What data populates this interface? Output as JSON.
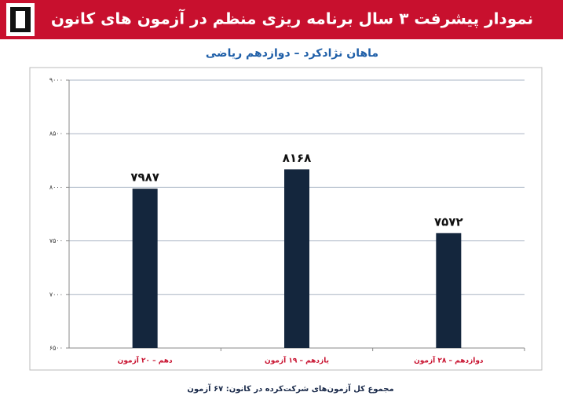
{
  "chart_data": {
    "type": "bar",
    "title": "نمودار پیشرفت ۳ سال برنامه ریزی منظم در آزمون های کانون",
    "subtitle": "ماهان نژادکرد – دوازدهم ریاضی",
    "categories": [
      "دهم – ۲۰ آزمون",
      "یازدهم – ۱۹ آزمون",
      "دوازدهم – ۲۸ آزمون"
    ],
    "values": [
      7987,
      8168,
      7572
    ],
    "value_labels": [
      "۷۹۸۷",
      "۸۱۶۸",
      "۷۵۷۲"
    ],
    "color": "#14263d",
    "ylim": [
      6500,
      9000
    ],
    "yticks": [
      {
        "value": 6500,
        "label": "۶۵۰۰"
      },
      {
        "value": 7000,
        "label": "۷۰۰۰"
      },
      {
        "value": 7500,
        "label": "۷۵۰۰"
      },
      {
        "value": 8000,
        "label": "۸۰۰۰"
      },
      {
        "value": 8500,
        "label": "۸۵۰۰"
      },
      {
        "value": 9000,
        "label": "۹۰۰۰"
      }
    ],
    "grid": true,
    "footnote": "مجموع کل آزمون‌های شرکت‌کرده در کانون: ۶۷ آزمون"
  }
}
